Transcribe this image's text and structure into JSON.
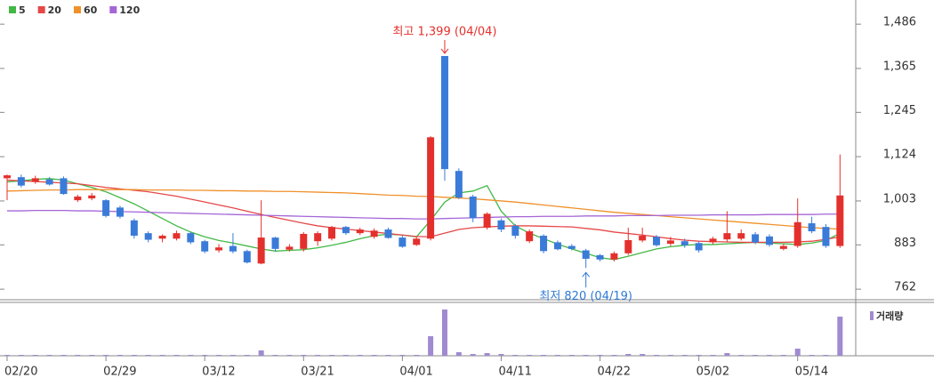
{
  "chart_data": {
    "type": "candlestick",
    "categories": [
      "02/20",
      null,
      null,
      null,
      null,
      null,
      null,
      "02/29",
      null,
      null,
      null,
      null,
      null,
      null,
      "03/12",
      null,
      null,
      null,
      null,
      null,
      null,
      "03/21",
      null,
      null,
      null,
      null,
      null,
      null,
      "04/01",
      null,
      null,
      null,
      null,
      null,
      null,
      "04/11",
      null,
      null,
      null,
      null,
      null,
      null,
      "04/22",
      null,
      null,
      null,
      null,
      null,
      null,
      "05/02",
      null,
      null,
      null,
      null,
      null,
      null,
      "05/14",
      null,
      null,
      null
    ],
    "open": [
      1065,
      1068,
      1055,
      1062,
      1065,
      1005,
      1010,
      1005,
      985,
      950,
      915,
      900,
      900,
      915,
      893,
      868,
      880,
      866,
      832,
      903,
      870,
      872,
      893,
      900,
      932,
      915,
      905,
      925,
      903,
      883,
      900,
      1399,
      1085,
      1015,
      930,
      950,
      935,
      893,
      908,
      890,
      880,
      868,
      855,
      843,
      860,
      895,
      905,
      886,
      893,
      888,
      890,
      898,
      900,
      912,
      906,
      872,
      880,
      942,
      932,
      880
    ],
    "high": [
      1075,
      1075,
      1072,
      1068,
      1070,
      1020,
      1025,
      1008,
      990,
      955,
      920,
      912,
      922,
      918,
      897,
      885,
      915,
      870,
      1005,
      905,
      885,
      918,
      920,
      935,
      935,
      930,
      928,
      930,
      908,
      905,
      1180,
      1399,
      1092,
      1020,
      972,
      955,
      940,
      925,
      912,
      895,
      885,
      872,
      858,
      865,
      930,
      930,
      910,
      905,
      900,
      893,
      905,
      975,
      925,
      918,
      912,
      885,
      1010,
      960,
      940,
      1130
    ],
    "low": [
      1005,
      1040,
      1050,
      1045,
      1020,
      1000,
      1005,
      958,
      955,
      900,
      890,
      890,
      895,
      885,
      860,
      862,
      860,
      832,
      830,
      865,
      865,
      865,
      880,
      895,
      910,
      910,
      900,
      900,
      875,
      880,
      895,
      1058,
      1008,
      945,
      925,
      918,
      900,
      888,
      860,
      868,
      868,
      820,
      838,
      838,
      855,
      890,
      878,
      880,
      875,
      862,
      885,
      890,
      895,
      885,
      878,
      868,
      875,
      915,
      875,
      875
    ],
    "close": [
      1073,
      1045,
      1065,
      1048,
      1022,
      1015,
      1018,
      962,
      960,
      908,
      897,
      908,
      915,
      890,
      865,
      876,
      865,
      835,
      903,
      872,
      878,
      913,
      915,
      932,
      915,
      925,
      922,
      902,
      878,
      900,
      1177,
      1090,
      1012,
      956,
      968,
      925,
      908,
      920,
      866,
      871,
      872,
      845,
      843,
      860,
      896,
      908,
      882,
      895,
      882,
      868,
      900,
      915,
      915,
      890,
      883,
      880,
      945,
      920,
      880,
      1018
    ],
    "up_color": "#e4302d",
    "down_color": "#3a7bd9",
    "ma": [
      {
        "name": "5",
        "color": "#42b845",
        "values": [
          1055,
          1058,
          1062,
          1064,
          1060,
          1050,
          1040,
          1028,
          1012,
          995,
          975,
          955,
          935,
          918,
          905,
          895,
          888,
          880,
          872,
          866,
          868,
          870,
          875,
          882,
          890,
          900,
          908,
          912,
          910,
          905,
          950,
          1000,
          1025,
          1030,
          1045,
          975,
          935,
          915,
          900,
          885,
          872,
          860,
          848,
          843,
          852,
          862,
          872,
          878,
          882,
          884,
          884,
          886,
          888,
          890,
          888,
          886,
          884,
          888,
          895,
          915
        ]
      },
      {
        "name": "20",
        "color": "#e54848",
        "values": [
          1060,
          1058,
          1056,
          1054,
          1052,
          1050,
          1045,
          1040,
          1036,
          1032,
          1028,
          1022,
          1016,
          1008,
          1000,
          992,
          984,
          975,
          966,
          958,
          950,
          942,
          935,
          930,
          926,
          922,
          918,
          914,
          910,
          906,
          905,
          915,
          925,
          930,
          932,
          934,
          935,
          935,
          934,
          933,
          932,
          928,
          924,
          918,
          914,
          910,
          905,
          900,
          896,
          893,
          892,
          891,
          890,
          890,
          890,
          890,
          891,
          893,
          898,
          905
        ]
      },
      {
        "name": "60",
        "color": "#f0902a",
        "values": [
          1030,
          1031,
          1032,
          1033,
          1033,
          1034,
          1034,
          1034,
          1034,
          1034,
          1033,
          1033,
          1033,
          1032,
          1032,
          1031,
          1031,
          1030,
          1030,
          1029,
          1029,
          1028,
          1027,
          1026,
          1025,
          1023,
          1021,
          1019,
          1018,
          1016,
          1015,
          1013,
          1011,
          1009,
          1006,
          1003,
          1000,
          996,
          992,
          988,
          984,
          980,
          976,
          972,
          969,
          966,
          963,
          960,
          957,
          954,
          951,
          948,
          945,
          942,
          939,
          936,
          933,
          930,
          928,
          926
        ]
      },
      {
        "name": "120",
        "color": "#a566d6",
        "values": [
          976,
          976,
          977,
          977,
          977,
          976,
          976,
          975,
          974,
          973,
          972,
          971,
          970,
          969,
          968,
          967,
          966,
          965,
          964,
          963,
          962,
          961,
          960,
          959,
          958,
          957,
          956,
          955,
          955,
          954,
          954,
          955,
          956,
          957,
          958,
          959,
          960,
          960,
          961,
          961,
          961,
          962,
          962,
          962,
          963,
          963,
          963,
          964,
          964,
          964,
          965,
          965,
          965,
          965,
          966,
          966,
          966,
          966,
          967,
          967
        ]
      }
    ],
    "volume": {
      "name": "거래량",
      "color": "#a08ad0",
      "values": [
        1,
        1,
        1,
        1,
        1,
        1,
        1,
        1,
        1,
        1,
        1,
        1,
        1,
        1,
        1,
        1,
        1,
        1,
        6,
        1,
        1,
        1,
        1,
        1,
        1,
        1,
        1,
        1,
        1,
        1,
        22,
        52,
        4,
        2,
        3,
        2,
        1,
        1,
        1,
        1,
        1,
        1,
        1,
        1,
        2,
        2,
        1,
        1,
        1,
        1,
        1,
        3,
        1,
        1,
        1,
        1,
        8,
        1,
        1,
        44
      ],
      "ylim": [
        0,
        60
      ]
    },
    "ylim": [
      738,
      1552
    ],
    "yticks": [
      {
        "value": 1486,
        "label": "1,486"
      },
      {
        "value": 1365,
        "label": "1,365"
      },
      {
        "value": 1245,
        "label": "1,245"
      },
      {
        "value": 1124,
        "label": "1,124"
      },
      {
        "value": 1003,
        "label": "1,003"
      },
      883,
      762
    ],
    "annotations": {
      "high": "최고 1,399 (04/04)",
      "low": "최저 820 (04/19)"
    }
  }
}
